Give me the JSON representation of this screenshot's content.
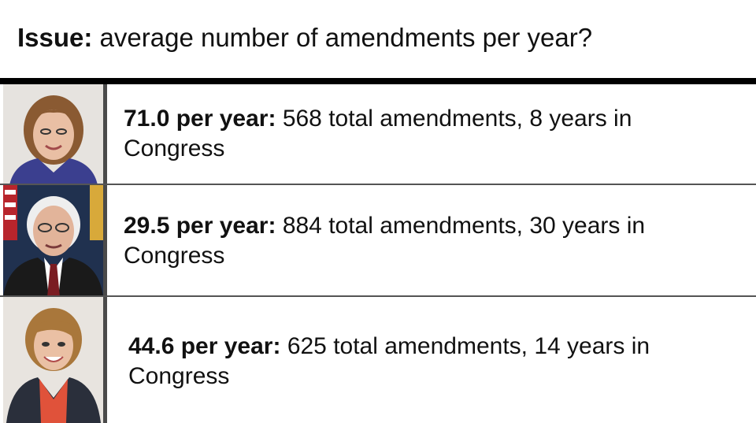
{
  "header": {
    "issue_label": "Issue:",
    "question": "average number of amendments per year?"
  },
  "rows": [
    {
      "rate": "71.0 per year:",
      "detail": "568 total amendments, 8 years in Congress",
      "photo": {
        "background": "#e6e3df",
        "hair": "#8a5a32",
        "jacket": "#3b3f8f",
        "skin": "#e9bfa4"
      }
    },
    {
      "rate": "29.5 per year:",
      "detail": "884 total amendments, 30 years in Congress",
      "photo": {
        "background": "#20314f",
        "hair": "#eeeeee",
        "jacket": "#1a1a1a",
        "tie": "#7a1c22",
        "skin": "#e2b49a"
      }
    },
    {
      "rate": "44.6 per year:",
      "detail": "625 total amendments, 14 years in Congress",
      "photo": {
        "background": "#e8e4df",
        "hair": "#a9773b",
        "jacket": "#2a2f3b",
        "top": "#e0523a",
        "skin": "#eac0a4"
      }
    }
  ],
  "colors": {
    "top_bar": "#000000",
    "divider": "#555555",
    "text": "#111111",
    "background": "#ffffff"
  }
}
